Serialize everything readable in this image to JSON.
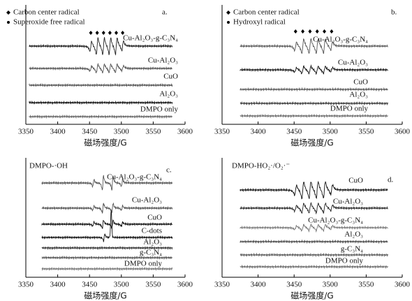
{
  "chart_data": [
    {
      "type": "line",
      "panel_label": "a.",
      "legend": [
        "Carbon center radical",
        "Superoxide free radical"
      ],
      "x_label": "磁场强度/G",
      "xlim": [
        3350,
        3600
      ],
      "xticks": [
        3350,
        3400,
        3450,
        3500,
        3550,
        3600
      ],
      "series": [
        {
          "name": "Cu-Al₂O₃-g-C₃N₄",
          "color": "#222"
        },
        {
          "name": "Cu-Al₂O₃",
          "color": "#555"
        },
        {
          "name": "CuO",
          "color": "#555"
        },
        {
          "name": "Al₂O₃",
          "color": "#111"
        },
        {
          "name": "DMPO only",
          "color": "#666"
        }
      ]
    },
    {
      "type": "line",
      "panel_label": "b.",
      "legend": [
        "Carbon center radical",
        "Hydroxyl radical"
      ],
      "x_label": "磁场强度/G",
      "xlim": [
        3350,
        3600
      ],
      "xticks": [
        3350,
        3400,
        3450,
        3500,
        3550,
        3600
      ],
      "series": [
        {
          "name": "Cu-Al₂O₃-g-C₃N₄",
          "color": "#555"
        },
        {
          "name": "Cu-Al₂O₃",
          "color": "#111"
        },
        {
          "name": "CuO",
          "color": "#555"
        },
        {
          "name": "Al₂O₃",
          "color": "#333"
        },
        {
          "name": "DMPO only",
          "color": "#666"
        }
      ]
    },
    {
      "type": "line",
      "panel_label": "c.",
      "title": "DMPO-·OH",
      "x_label": "磁场强度/G",
      "xlim": [
        3350,
        3600
      ],
      "xticks": [
        3350,
        3400,
        3450,
        3500,
        3550,
        3600
      ],
      "series": [
        {
          "name": "Cu-Al₂O₃-g-C₃N₄",
          "color": "#555"
        },
        {
          "name": "Cu-Al₂O₃",
          "color": "#555"
        },
        {
          "name": "CuO",
          "color": "#111"
        },
        {
          "name": "C-dots",
          "color": "#111"
        },
        {
          "name": "Al₂O₃",
          "color": "#333"
        },
        {
          "name": "g-C₃N₄",
          "color": "#555"
        },
        {
          "name": "DMPO only",
          "color": "#777"
        }
      ]
    },
    {
      "type": "line",
      "panel_label": "d.",
      "title": "DMPO-HO₂·/O₂·⁻",
      "x_label": "磁场强度/G",
      "xlim": [
        3350,
        3600
      ],
      "xticks": [
        3350,
        3400,
        3450,
        3500,
        3550,
        3600
      ],
      "series": [
        {
          "name": "CuO",
          "color": "#111"
        },
        {
          "name": "Cu-Al₂O₃",
          "color": "#222"
        },
        {
          "name": "Cu-Al₂O₃-g-C₃N₄",
          "color": "#777"
        },
        {
          "name": "Al₂O₃",
          "color": "#444"
        },
        {
          "name": "g-C₃N₄",
          "color": "#555"
        },
        {
          "name": "DMPO only",
          "color": "#666"
        }
      ]
    }
  ]
}
